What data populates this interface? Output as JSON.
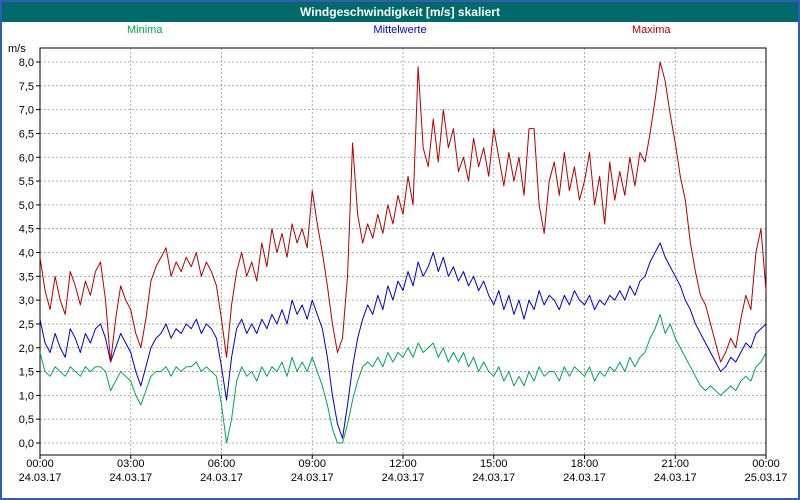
{
  "window": {
    "title": "Windgeschwindigkeit [m/s] skaliert"
  },
  "colors": {
    "titlebar": "#006A6A",
    "window_border": "#2F5FAE",
    "grid": "#9A9A9A",
    "frame": "#000000"
  },
  "legend": [
    {
      "label": "Minima",
      "color": "#00A651"
    },
    {
      "label": "Mittelwerte",
      "color": "#0000C8"
    },
    {
      "label": "Maxima",
      "color": "#B40000"
    }
  ],
  "chart_data": {
    "type": "line",
    "title": "Windgeschwindigkeit [m/s] skaliert",
    "xlabel": "",
    "ylabel": "m/s",
    "ylim": [
      0.0,
      8.0
    ],
    "ytick_step": 0.5,
    "ytick_labels": [
      "8,0",
      "7,5",
      "7,0",
      "6,5",
      "6,0",
      "5,5",
      "5,0",
      "4,5",
      "4,0",
      "3,5",
      "3,0",
      "2,5",
      "2,0",
      "1,5",
      "1,0",
      "0,5",
      "0,0"
    ],
    "grid": true,
    "legend_position": "top",
    "x_hours": 24,
    "points_per_hour": 6,
    "xticks": [
      {
        "time": "00:00",
        "date": "24.03.17"
      },
      {
        "time": "03:00",
        "date": "24.03.17"
      },
      {
        "time": "06:00",
        "date": "24.03.17"
      },
      {
        "time": "09:00",
        "date": "24.03.17"
      },
      {
        "time": "12:00",
        "date": "24.03.17"
      },
      {
        "time": "15:00",
        "date": "24.03.17"
      },
      {
        "time": "18:00",
        "date": "24.03.17"
      },
      {
        "time": "21:00",
        "date": "24.03.17"
      },
      {
        "time": "00:00",
        "date": "25.03.17"
      }
    ],
    "series": [
      {
        "name": "Minima",
        "color": "#00A651",
        "values": [
          1.9,
          1.5,
          1.4,
          1.6,
          1.5,
          1.4,
          1.6,
          1.5,
          1.4,
          1.6,
          1.5,
          1.6,
          1.6,
          1.5,
          1.1,
          1.3,
          1.5,
          1.4,
          1.3,
          1.0,
          0.8,
          1.1,
          1.4,
          1.5,
          1.5,
          1.6,
          1.4,
          1.6,
          1.5,
          1.6,
          1.6,
          1.7,
          1.5,
          1.6,
          1.5,
          1.4,
          0.8,
          0.0,
          0.5,
          1.3,
          1.6,
          1.4,
          1.5,
          1.3,
          1.6,
          1.4,
          1.6,
          1.5,
          1.7,
          1.4,
          1.8,
          1.5,
          1.7,
          1.5,
          1.8,
          1.5,
          1.2,
          0.8,
          0.3,
          0.0,
          0.0,
          0.4,
          0.9,
          1.3,
          1.6,
          1.7,
          1.6,
          1.8,
          1.6,
          1.9,
          1.7,
          1.9,
          1.8,
          2.0,
          1.8,
          2.1,
          1.9,
          2.0,
          2.1,
          1.8,
          2.0,
          1.7,
          1.9,
          1.7,
          1.9,
          1.6,
          1.8,
          1.5,
          1.7,
          1.5,
          1.4,
          1.6,
          1.3,
          1.5,
          1.2,
          1.4,
          1.2,
          1.5,
          1.3,
          1.6,
          1.4,
          1.5,
          1.5,
          1.3,
          1.6,
          1.4,
          1.6,
          1.5,
          1.4,
          1.6,
          1.3,
          1.5,
          1.4,
          1.6,
          1.5,
          1.7,
          1.5,
          1.8,
          1.6,
          1.8,
          1.9,
          2.2,
          2.4,
          2.7,
          2.3,
          2.5,
          2.2,
          2.0,
          1.8,
          1.6,
          1.4,
          1.2,
          1.1,
          1.2,
          1.1,
          1.0,
          1.1,
          1.2,
          1.1,
          1.3,
          1.4,
          1.3,
          1.6,
          1.7,
          1.9
        ]
      },
      {
        "name": "Mittelwerte",
        "color": "#0000C8",
        "values": [
          2.6,
          2.1,
          1.9,
          2.3,
          2.0,
          1.8,
          2.4,
          2.2,
          1.9,
          2.3,
          2.1,
          2.4,
          2.5,
          2.2,
          1.7,
          2.0,
          2.3,
          2.1,
          1.9,
          1.5,
          1.2,
          1.6,
          2.0,
          2.2,
          2.3,
          2.5,
          2.2,
          2.4,
          2.3,
          2.5,
          2.4,
          2.6,
          2.3,
          2.5,
          2.4,
          2.2,
          1.6,
          0.9,
          1.8,
          2.4,
          2.6,
          2.3,
          2.5,
          2.3,
          2.6,
          2.4,
          2.7,
          2.5,
          2.8,
          2.5,
          3.0,
          2.7,
          2.9,
          2.6,
          3.0,
          2.7,
          2.4,
          1.8,
          1.0,
          0.4,
          0.1,
          0.8,
          1.6,
          2.2,
          2.6,
          2.9,
          2.7,
          3.1,
          2.8,
          3.3,
          3.0,
          3.4,
          3.2,
          3.6,
          3.3,
          3.8,
          3.5,
          3.7,
          4.0,
          3.6,
          3.9,
          3.5,
          3.7,
          3.4,
          3.6,
          3.3,
          3.5,
          3.2,
          3.4,
          3.1,
          2.9,
          3.2,
          2.8,
          3.1,
          2.7,
          3.0,
          2.6,
          3.0,
          2.8,
          3.2,
          2.9,
          3.1,
          3.0,
          2.8,
          3.1,
          2.9,
          3.2,
          3.0,
          2.9,
          3.1,
          2.8,
          3.0,
          2.9,
          3.1,
          3.0,
          3.2,
          3.0,
          3.3,
          3.1,
          3.4,
          3.5,
          3.8,
          4.0,
          4.2,
          3.9,
          3.7,
          3.5,
          3.3,
          3.0,
          2.8,
          2.5,
          2.3,
          2.1,
          1.9,
          1.7,
          1.5,
          1.6,
          1.8,
          1.7,
          1.9,
          2.1,
          2.0,
          2.3,
          2.4,
          2.5
        ]
      },
      {
        "name": "Maxima",
        "color": "#B40000",
        "values": [
          3.9,
          3.2,
          2.8,
          3.5,
          3.0,
          2.7,
          3.6,
          3.3,
          2.9,
          3.4,
          3.1,
          3.6,
          3.8,
          3.0,
          1.7,
          2.6,
          3.3,
          3.0,
          2.8,
          2.3,
          2.0,
          2.6,
          3.4,
          3.7,
          3.9,
          4.1,
          3.5,
          3.8,
          3.6,
          3.9,
          3.7,
          4.0,
          3.5,
          3.8,
          3.6,
          3.3,
          2.6,
          1.8,
          2.9,
          3.6,
          4.0,
          3.5,
          3.8,
          3.4,
          4.2,
          3.7,
          4.5,
          4.0,
          4.4,
          3.9,
          4.6,
          4.2,
          4.5,
          4.1,
          5.3,
          4.6,
          4.0,
          3.3,
          2.5,
          1.9,
          2.2,
          3.5,
          6.3,
          4.8,
          4.2,
          4.6,
          4.3,
          4.8,
          4.4,
          5.0,
          4.6,
          5.2,
          4.8,
          5.6,
          5.0,
          7.9,
          6.2,
          5.8,
          6.8,
          5.9,
          7.0,
          6.2,
          6.6,
          5.7,
          6.0,
          5.5,
          6.4,
          5.8,
          6.2,
          5.6,
          6.6,
          6.0,
          5.4,
          6.1,
          5.5,
          6.0,
          5.2,
          6.6,
          6.6,
          5.0,
          4.4,
          5.5,
          5.9,
          5.2,
          6.1,
          5.3,
          5.8,
          5.1,
          5.5,
          6.1,
          5.0,
          5.6,
          4.6,
          5.9,
          5.1,
          5.7,
          5.2,
          6.0,
          5.4,
          6.1,
          5.9,
          6.5,
          7.2,
          8.0,
          7.6,
          6.9,
          6.3,
          5.6,
          5.1,
          4.2,
          3.6,
          3.1,
          2.9,
          2.5,
          2.1,
          1.7,
          1.9,
          2.2,
          2.0,
          2.6,
          3.1,
          2.8,
          4.0,
          4.5,
          3.2
        ]
      }
    ]
  }
}
